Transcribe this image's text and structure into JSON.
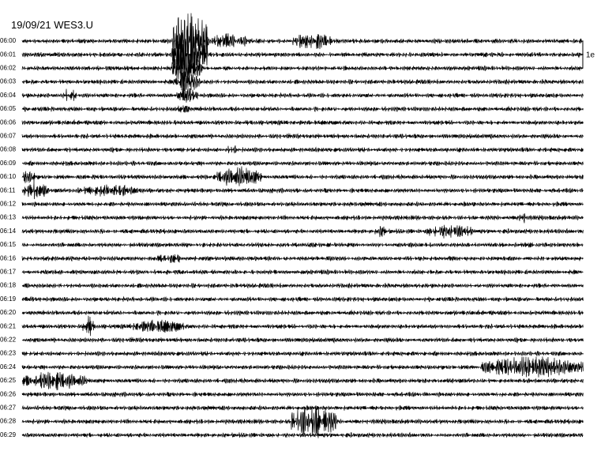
{
  "title": "19/09/21 WES3.U",
  "rows": [
    "06:00",
    "06:01",
    "06:02",
    "06:03",
    "06:04",
    "06:05",
    "06:06",
    "06:07",
    "06:08",
    "06:09",
    "06:10",
    "06:11",
    "06:12",
    "06:13",
    "06:14",
    "06:15",
    "06:16",
    "06:17",
    "06:18",
    "06:19",
    "06:20",
    "06:21",
    "06:22",
    "06:23",
    "06:24",
    "06:25",
    "06:26",
    "06:27",
    "06:28",
    "06:29"
  ],
  "scale_label": "1e"
}
